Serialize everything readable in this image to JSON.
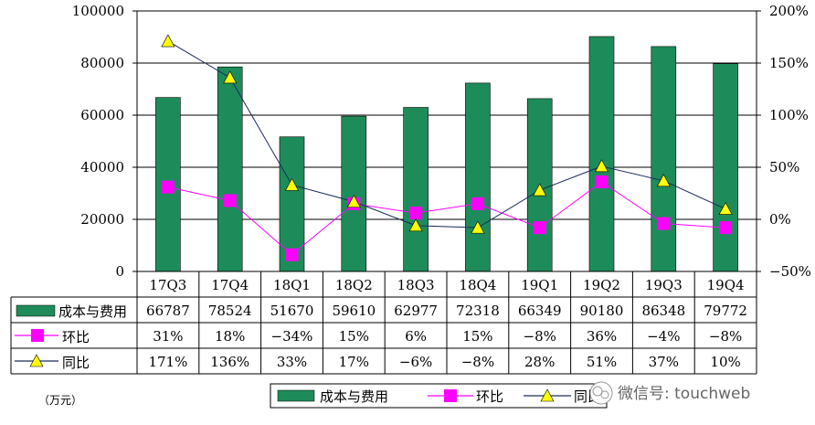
{
  "chart_data": {
    "type": "bar",
    "categories": [
      "17Q3",
      "17Q4",
      "18Q1",
      "18Q2",
      "18Q3",
      "18Q4",
      "19Q1",
      "19Q2",
      "19Q3",
      "19Q4"
    ],
    "series": [
      {
        "name": "成本与费用",
        "kind": "bar",
        "axis": "left",
        "values": [
          66787,
          78524,
          51670,
          59610,
          62977,
          72318,
          66349,
          90180,
          86348,
          79772
        ]
      },
      {
        "name": "环比",
        "kind": "line",
        "axis": "right",
        "values": [
          31,
          18,
          -34,
          15,
          6,
          15,
          -8,
          36,
          -4,
          -8
        ]
      },
      {
        "name": "同比",
        "kind": "line",
        "axis": "right",
        "values": [
          171,
          136,
          33,
          17,
          -6,
          -8,
          28,
          51,
          37,
          10
        ]
      }
    ],
    "table": {
      "row_labels": [
        "成本与费用",
        "环比",
        "同比"
      ],
      "bar_text": [
        "66787",
        "78524",
        "51670",
        "59610",
        "62977",
        "72318",
        "66349",
        "90180",
        "86348",
        "79772"
      ],
      "mom_text": [
        "31%",
        "18%",
        "−34%",
        "15%",
        "6%",
        "15%",
        "−8%",
        "36%",
        "−4%",
        "−8%"
      ],
      "yoy_text": [
        "171%",
        "136%",
        "33%",
        "17%",
        "−6%",
        "−8%",
        "28%",
        "51%",
        "37%",
        "10%"
      ]
    },
    "left_axis": {
      "min": 0,
      "max": 100000,
      "ticks": [
        "0",
        "20000",
        "40000",
        "60000",
        "80000",
        "100000"
      ]
    },
    "right_axis": {
      "min": -50,
      "max": 200,
      "ticks": [
        "−50%",
        "0%",
        "50%",
        "100%",
        "150%",
        "200%"
      ]
    },
    "unit": "（万元）",
    "legend": {
      "items": [
        "成本与费用",
        "环比",
        "同比"
      ],
      "position": "bottom-center"
    },
    "colors": {
      "bar": "#1e8c5a",
      "mom": "#ff00ff",
      "yoy_marker": "#ffff00",
      "yoy_line": "#1a2a5a",
      "grid": "#000000"
    },
    "grid": true
  },
  "watermark": "微信号: touchweb"
}
